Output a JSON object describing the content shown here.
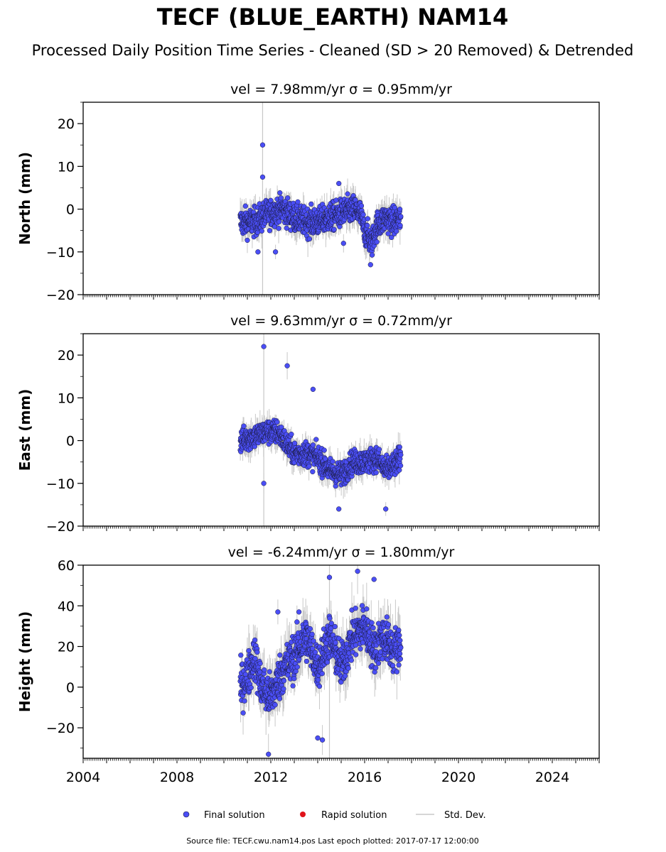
{
  "figure": {
    "title": "TECF (BLUE_EARTH) NAM14",
    "subtitle": "Processed Daily Position Time Series - Cleaned (SD > 20 Removed) & Detrended",
    "footer": "Source file: TECF.cwu.nam14.pos  Last epoch plotted: 2017-07-17 12:00:00"
  },
  "legend": {
    "final": "Final solution",
    "rapid": "Rapid solution",
    "std": "Std. Dev."
  },
  "colors": {
    "final": "#4a4ef5",
    "rapid": "#e0131a",
    "std": "#c8c8c8",
    "marker_edge": "#1a1a3a"
  },
  "chart_data": [
    {
      "type": "scatter",
      "panel": "north",
      "title": "vel = 7.98mm/yr   σ = 0.95mm/yr",
      "ylabel": "North (mm)",
      "xlim": [
        2004.0,
        2026.0
      ],
      "ylim": [
        -20,
        25
      ],
      "xticks": [
        2004,
        2008,
        2012,
        2016,
        2020,
        2024
      ],
      "yticks": [
        -20,
        -10,
        0,
        10,
        20
      ],
      "data_x_range": [
        2010.7,
        2017.54
      ],
      "series": [
        {
          "name": "Final solution",
          "trend": [
            [
              2010.7,
              -3
            ],
            [
              2011.3,
              -3
            ],
            [
              2011.9,
              -1
            ],
            [
              2012.5,
              0
            ],
            [
              2013.0,
              -2
            ],
            [
              2013.5,
              -3
            ],
            [
              2014.0,
              -3
            ],
            [
              2014.5,
              -2
            ],
            [
              2015.0,
              -1
            ],
            [
              2015.5,
              0
            ],
            [
              2015.8,
              -1
            ],
            [
              2016.0,
              -5
            ],
            [
              2016.3,
              -8
            ],
            [
              2016.5,
              -4
            ],
            [
              2016.9,
              -2
            ],
            [
              2017.2,
              -3
            ],
            [
              2017.54,
              -2
            ]
          ],
          "spread": 3.0,
          "outliers": [
            [
              2011.65,
              15
            ],
            [
              2011.65,
              7.5
            ],
            [
              2011.45,
              -10
            ],
            [
              2012.2,
              -10
            ],
            [
              2016.25,
              -13
            ],
            [
              2015.1,
              -8
            ],
            [
              2014.9,
              6
            ]
          ]
        }
      ]
    },
    {
      "type": "scatter",
      "panel": "east",
      "title": "vel = 9.63mm/yr   σ = 0.72mm/yr",
      "ylabel": "East (mm)",
      "xlim": [
        2004.0,
        2026.0
      ],
      "ylim": [
        -20,
        25
      ],
      "xticks": [
        2004,
        2008,
        2012,
        2016,
        2020,
        2024
      ],
      "yticks": [
        -20,
        -10,
        0,
        10,
        20
      ],
      "data_x_range": [
        2010.7,
        2017.54
      ],
      "series": [
        {
          "name": "Final solution",
          "trend": [
            [
              2010.7,
              0
            ],
            [
              2011.3,
              1
            ],
            [
              2011.8,
              2
            ],
            [
              2012.3,
              2
            ],
            [
              2012.7,
              -1
            ],
            [
              2013.0,
              -3
            ],
            [
              2013.5,
              -3
            ],
            [
              2014.0,
              -4
            ],
            [
              2014.5,
              -7
            ],
            [
              2015.0,
              -8
            ],
            [
              2015.5,
              -5
            ],
            [
              2016.0,
              -5
            ],
            [
              2016.5,
              -4
            ],
            [
              2016.9,
              -7
            ],
            [
              2017.2,
              -6
            ],
            [
              2017.54,
              -4
            ]
          ],
          "spread": 2.6,
          "outliers": [
            [
              2011.7,
              22
            ],
            [
              2012.7,
              17.5
            ],
            [
              2013.8,
              12
            ],
            [
              2011.7,
              -10
            ],
            [
              2014.9,
              -16
            ],
            [
              2016.9,
              -16
            ]
          ]
        }
      ]
    },
    {
      "type": "scatter",
      "panel": "height",
      "title": "vel = -6.24mm/yr   σ = 1.80mm/yr",
      "ylabel": "Height (mm)",
      "xlim": [
        2004.0,
        2026.0
      ],
      "ylim": [
        -35,
        60
      ],
      "xticks": [
        2004,
        2008,
        2012,
        2016,
        2020,
        2024
      ],
      "yticks": [
        -20,
        0,
        20,
        40,
        60
      ],
      "data_x_range": [
        2010.7,
        2017.54
      ],
      "series": [
        {
          "name": "Final solution",
          "trend": [
            [
              2010.7,
              0
            ],
            [
              2011.0,
              5
            ],
            [
              2011.3,
              15
            ],
            [
              2011.6,
              0
            ],
            [
              2012.0,
              -5
            ],
            [
              2012.5,
              8
            ],
            [
              2013.0,
              15
            ],
            [
              2013.5,
              25
            ],
            [
              2014.0,
              10
            ],
            [
              2014.5,
              25
            ],
            [
              2015.0,
              10
            ],
            [
              2015.5,
              25
            ],
            [
              2016.0,
              30
            ],
            [
              2016.4,
              18
            ],
            [
              2016.8,
              25
            ],
            [
              2017.2,
              18
            ],
            [
              2017.54,
              20
            ]
          ],
          "spread": 10,
          "outliers": [
            [
              2014.5,
              54
            ],
            [
              2015.7,
              57
            ],
            [
              2016.4,
              53
            ],
            [
              2011.9,
              -33
            ],
            [
              2014.0,
              -25
            ],
            [
              2014.2,
              -26
            ],
            [
              2013.2,
              37
            ],
            [
              2012.3,
              37
            ]
          ]
        }
      ]
    }
  ]
}
